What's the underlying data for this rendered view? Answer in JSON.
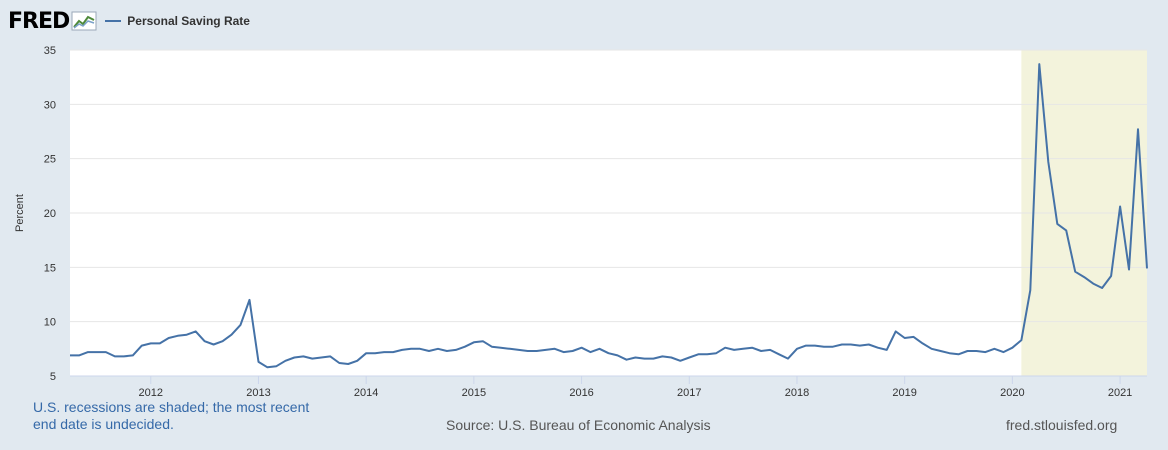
{
  "header": {
    "logo_text": "FRED",
    "logo_icon": "chart-line-icon"
  },
  "colors": {
    "background": "#e1e9f0",
    "plot_background": "#ffffff",
    "series": "#4572a7",
    "recession_shade": "#f3f3dc",
    "grid": "#e6e6e6"
  },
  "chart_data": {
    "type": "line",
    "title": "",
    "xlabel": "",
    "ylabel": "Percent",
    "ylim": [
      5,
      35
    ],
    "yticks": [
      5,
      10,
      15,
      20,
      25,
      30,
      35
    ],
    "xlim": [
      "2011-04",
      "2021-04"
    ],
    "xtick_labels": [
      "2012",
      "2013",
      "2014",
      "2015",
      "2016",
      "2017",
      "2018",
      "2019",
      "2020",
      "2021"
    ],
    "grid": true,
    "recession_shading": [
      {
        "start": "2020-02",
        "end": "2021-04"
      }
    ],
    "series": [
      {
        "name": "Personal Saving Rate",
        "x": [
          "2011-04",
          "2011-05",
          "2011-06",
          "2011-07",
          "2011-08",
          "2011-09",
          "2011-10",
          "2011-11",
          "2011-12",
          "2012-01",
          "2012-02",
          "2012-03",
          "2012-04",
          "2012-05",
          "2012-06",
          "2012-07",
          "2012-08",
          "2012-09",
          "2012-10",
          "2012-11",
          "2012-12",
          "2013-01",
          "2013-02",
          "2013-03",
          "2013-04",
          "2013-05",
          "2013-06",
          "2013-07",
          "2013-08",
          "2013-09",
          "2013-10",
          "2013-11",
          "2013-12",
          "2014-01",
          "2014-02",
          "2014-03",
          "2014-04",
          "2014-05",
          "2014-06",
          "2014-07",
          "2014-08",
          "2014-09",
          "2014-10",
          "2014-11",
          "2014-12",
          "2015-01",
          "2015-02",
          "2015-03",
          "2015-04",
          "2015-05",
          "2015-06",
          "2015-07",
          "2015-08",
          "2015-09",
          "2015-10",
          "2015-11",
          "2015-12",
          "2016-01",
          "2016-02",
          "2016-03",
          "2016-04",
          "2016-05",
          "2016-06",
          "2016-07",
          "2016-08",
          "2016-09",
          "2016-10",
          "2016-11",
          "2016-12",
          "2017-01",
          "2017-02",
          "2017-03",
          "2017-04",
          "2017-05",
          "2017-06",
          "2017-07",
          "2017-08",
          "2017-09",
          "2017-10",
          "2017-11",
          "2017-12",
          "2018-01",
          "2018-02",
          "2018-03",
          "2018-04",
          "2018-05",
          "2018-06",
          "2018-07",
          "2018-08",
          "2018-09",
          "2018-10",
          "2018-11",
          "2018-12",
          "2019-01",
          "2019-02",
          "2019-03",
          "2019-04",
          "2019-05",
          "2019-06",
          "2019-07",
          "2019-08",
          "2019-09",
          "2019-10",
          "2019-11",
          "2019-12",
          "2020-01",
          "2020-02",
          "2020-03",
          "2020-04",
          "2020-05",
          "2020-06",
          "2020-07",
          "2020-08",
          "2020-09",
          "2020-10",
          "2020-11",
          "2020-12",
          "2021-01",
          "2021-02",
          "2021-03",
          "2021-04"
        ],
        "values": [
          6.9,
          6.9,
          7.2,
          7.2,
          7.2,
          6.8,
          6.8,
          6.9,
          7.8,
          8.0,
          8.0,
          8.5,
          8.7,
          8.8,
          9.1,
          8.2,
          7.9,
          8.2,
          8.8,
          9.7,
          12.0,
          6.3,
          5.8,
          5.9,
          6.4,
          6.7,
          6.8,
          6.6,
          6.7,
          6.8,
          6.2,
          6.1,
          6.4,
          7.1,
          7.1,
          7.2,
          7.2,
          7.4,
          7.5,
          7.5,
          7.3,
          7.5,
          7.3,
          7.4,
          7.7,
          8.1,
          8.2,
          7.7,
          7.6,
          7.5,
          7.4,
          7.3,
          7.3,
          7.4,
          7.5,
          7.2,
          7.3,
          7.6,
          7.2,
          7.5,
          7.1,
          6.9,
          6.5,
          6.7,
          6.6,
          6.6,
          6.8,
          6.7,
          6.4,
          6.7,
          7.0,
          7.0,
          7.1,
          7.6,
          7.4,
          7.5,
          7.6,
          7.3,
          7.4,
          7.0,
          6.6,
          7.5,
          7.8,
          7.8,
          7.7,
          7.7,
          7.9,
          7.9,
          7.8,
          7.9,
          7.6,
          7.4,
          9.1,
          8.5,
          8.6,
          8.0,
          7.5,
          7.3,
          7.1,
          7.0,
          7.3,
          7.3,
          7.2,
          7.5,
          7.2,
          7.6,
          8.3,
          12.9,
          33.7,
          24.7,
          19.0,
          18.4,
          14.6,
          14.1,
          13.5,
          13.1,
          14.2,
          20.6,
          14.8,
          27.7,
          14.9
        ]
      }
    ]
  },
  "footer": {
    "recession_note": "U.S. recessions are shaded; the most recent end date is undecided.",
    "source": "Source: U.S. Bureau of Economic Analysis",
    "url": "fred.stlouisfed.org"
  }
}
